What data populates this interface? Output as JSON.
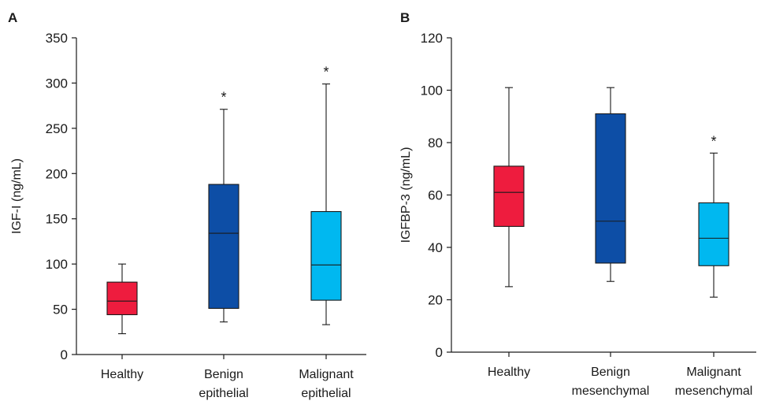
{
  "chart_data": [
    {
      "type": "box",
      "panel": "A",
      "ylabel": "IGF-I (ng/mL)",
      "ylim": [
        0,
        350
      ],
      "yticks": [
        0,
        50,
        100,
        150,
        200,
        250,
        300,
        350
      ],
      "categories": [
        {
          "lines": [
            "Healthy"
          ]
        },
        {
          "lines": [
            "Benign",
            "epithelial"
          ]
        },
        {
          "lines": [
            "Malignant",
            "epithelial"
          ]
        }
      ],
      "boxes": [
        {
          "min": 23,
          "q1": 44,
          "median": 59,
          "q3": 80,
          "max": 100,
          "color": "#ee1c3e",
          "significant": false
        },
        {
          "min": 36,
          "q1": 51,
          "median": 134,
          "q3": 188,
          "max": 271,
          "color": "#0d4ea6",
          "significant": true
        },
        {
          "min": 33,
          "q1": 60,
          "median": 99,
          "q3": 158,
          "max": 299,
          "color": "#00b8f0",
          "significant": true
        }
      ],
      "significance_marker": "*"
    },
    {
      "type": "box",
      "panel": "B",
      "ylabel": "IGFBP-3 (ng/mL)",
      "ylim": [
        0,
        120
      ],
      "yticks": [
        0,
        20,
        40,
        60,
        80,
        100,
        120
      ],
      "categories": [
        {
          "lines": [
            "Healthy"
          ]
        },
        {
          "lines": [
            "Benign",
            "mesenchymal"
          ]
        },
        {
          "lines": [
            "Malignant",
            "mesenchymal"
          ]
        }
      ],
      "boxes": [
        {
          "min": 25,
          "q1": 48,
          "median": 61,
          "q3": 71,
          "max": 101,
          "color": "#ee1c3e",
          "significant": false
        },
        {
          "min": 27,
          "q1": 34,
          "median": 50,
          "q3": 91,
          "max": 101,
          "color": "#0d4ea6",
          "significant": false
        },
        {
          "min": 21,
          "q1": 33,
          "median": 43.5,
          "q3": 57,
          "max": 76,
          "color": "#00b8f0",
          "significant": true
        }
      ],
      "significance_marker": "*"
    }
  ]
}
